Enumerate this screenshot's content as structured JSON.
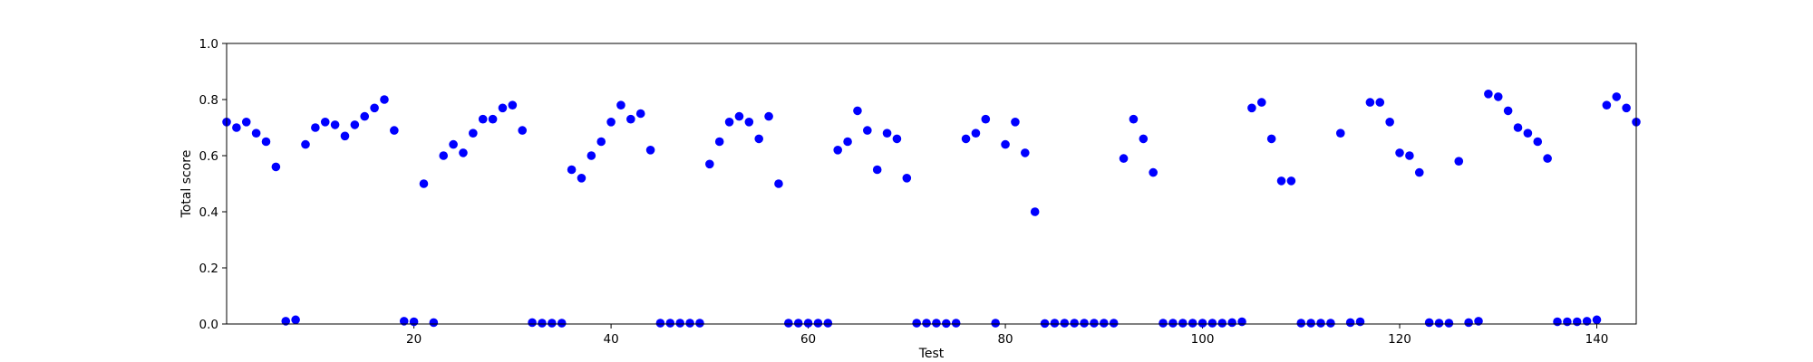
{
  "chart_data": {
    "type": "scatter",
    "title": "",
    "xlabel": "Test",
    "ylabel": "Total score",
    "xlim": [
      1,
      144
    ],
    "ylim": [
      0.0,
      1.0
    ],
    "grid": false,
    "marker_color": "#0000ff",
    "x_ticks": [
      "20",
      "40",
      "60",
      "80",
      "100",
      "120",
      "140"
    ],
    "y_ticks": [
      "0.0",
      "0.2",
      "0.4",
      "0.6",
      "0.8",
      "1.0"
    ],
    "x": [
      1,
      2,
      3,
      4,
      5,
      6,
      7,
      8,
      9,
      10,
      11,
      12,
      13,
      14,
      15,
      16,
      17,
      18,
      19,
      20,
      21,
      22,
      23,
      24,
      25,
      26,
      27,
      28,
      29,
      30,
      31,
      32,
      33,
      34,
      35,
      36,
      37,
      38,
      39,
      40,
      41,
      42,
      43,
      44,
      45,
      46,
      47,
      48,
      49,
      50,
      51,
      52,
      53,
      54,
      55,
      56,
      57,
      58,
      59,
      60,
      61,
      62,
      63,
      64,
      65,
      66,
      67,
      68,
      69,
      70,
      71,
      72,
      73,
      74,
      75,
      76,
      77,
      78,
      79,
      80,
      81,
      82,
      83,
      84,
      85,
      86,
      87,
      88,
      89,
      90,
      91,
      92,
      93,
      94,
      95,
      96,
      97,
      98,
      99,
      100,
      101,
      102,
      103,
      104,
      105,
      106,
      107,
      108,
      109,
      110,
      111,
      112,
      113,
      114,
      115,
      116,
      117,
      118,
      119,
      120,
      121,
      122,
      123,
      124,
      125,
      126,
      127,
      128,
      129,
      130,
      131,
      132,
      133,
      134,
      135,
      136,
      137,
      138,
      139,
      140,
      141,
      142,
      143,
      144
    ],
    "y": [
      0.72,
      0.7,
      0.72,
      0.68,
      0.65,
      0.56,
      0.01,
      0.015,
      0.64,
      0.7,
      0.72,
      0.71,
      0.67,
      0.71,
      0.74,
      0.77,
      0.8,
      0.69,
      0.01,
      0.008,
      0.5,
      0.005,
      0.6,
      0.64,
      0.61,
      0.68,
      0.73,
      0.73,
      0.77,
      0.78,
      0.69,
      0.005,
      0.003,
      0.003,
      0.003,
      0.55,
      0.52,
      0.6,
      0.65,
      0.72,
      0.78,
      0.73,
      0.75,
      0.62,
      0.003,
      0.003,
      0.003,
      0.003,
      0.003,
      0.57,
      0.65,
      0.72,
      0.74,
      0.72,
      0.66,
      0.74,
      0.5,
      0.003,
      0.003,
      0.003,
      0.003,
      0.003,
      0.62,
      0.65,
      0.76,
      0.69,
      0.55,
      0.68,
      0.66,
      0.52,
      0.003,
      0.003,
      0.003,
      0.002,
      0.003,
      0.66,
      0.68,
      0.73,
      0.003,
      0.64,
      0.72,
      0.61,
      0.4,
      0.002,
      0.003,
      0.003,
      0.003,
      0.003,
      0.003,
      0.003,
      0.003,
      0.59,
      0.73,
      0.66,
      0.54,
      0.003,
      0.003,
      0.003,
      0.003,
      0.003,
      0.003,
      0.003,
      0.005,
      0.008,
      0.77,
      0.79,
      0.66,
      0.51,
      0.51,
      0.003,
      0.003,
      0.003,
      0.003,
      0.68,
      0.005,
      0.008,
      0.79,
      0.79,
      0.72,
      0.61,
      0.6,
      0.54,
      0.005,
      0.003,
      0.003,
      0.58,
      0.005,
      0.01,
      0.82,
      0.81,
      0.76,
      0.7,
      0.68,
      0.65,
      0.59,
      0.008,
      0.008,
      0.008,
      0.01,
      0.015,
      0.78,
      0.81,
      0.77,
      0.72
    ]
  }
}
